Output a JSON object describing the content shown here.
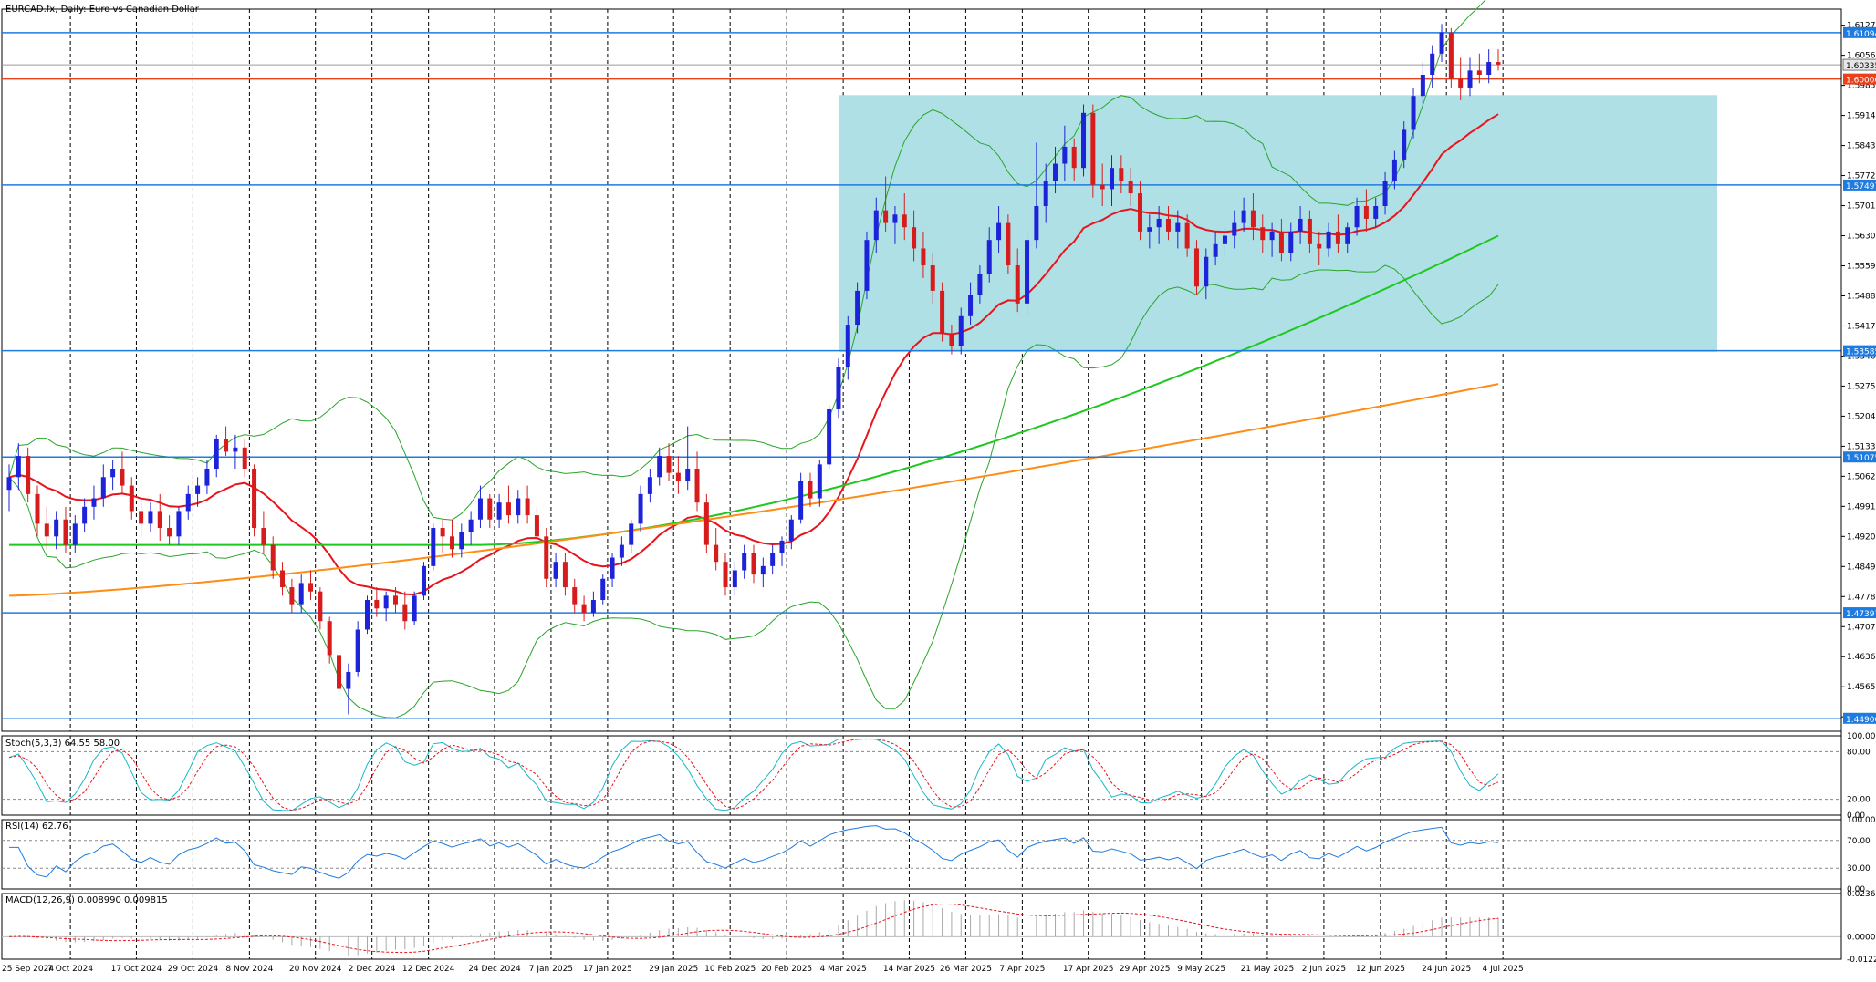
{
  "chart_data": {
    "type": "candlestick",
    "symbol_label": "EURCAD.fx, Daily:  Euro vs Canadian Dollar",
    "price_ticks": [
      "1.61270",
      "1.60560",
      "1.59850",
      "1.59140",
      "1.58430",
      "1.57720",
      "1.57010",
      "1.56300",
      "1.55590",
      "1.54880",
      "1.54170",
      "1.53460",
      "1.52750",
      "1.52040",
      "1.51330",
      "1.50620",
      "1.49910",
      "1.49200",
      "1.48490",
      "1.47780",
      "1.47070",
      "1.46360",
      "1.45650",
      "1.44940"
    ],
    "horizontal_levels": [
      {
        "value": 1.61094,
        "label": "1.61094",
        "color": "#1e7be0"
      },
      {
        "value": 1.57497,
        "label": "1.57497",
        "color": "#1e7be0"
      },
      {
        "value": 1.53585,
        "label": "1.53585",
        "color": "#1e7be0"
      },
      {
        "value": 1.51075,
        "label": "1.51075",
        "color": "#1e7be0"
      },
      {
        "value": 1.47397,
        "label": "1.47397",
        "color": "#1e7be0"
      },
      {
        "value": 1.44906,
        "label": "1.44906",
        "color": "#1e7be0"
      },
      {
        "value": 1.6,
        "label": "1.60000",
        "color": "#e8411c"
      }
    ],
    "current_price": {
      "value": 1.60335,
      "label": "1.60335"
    },
    "range_box": {
      "from_date": "4 Mar 2025",
      "to_date": "Jul 2025",
      "top": 1.5962,
      "bottom": 1.5356,
      "color": "#aee0e6"
    },
    "date_ticks": [
      "25 Sep 2024",
      "7 Oct 2024",
      "17 Oct 2024",
      "29 Oct 2024",
      "8 Nov 2024",
      "20 Nov 2024",
      "2 Dec 2024",
      "12 Dec 2024",
      "24 Dec 2024",
      "7 Jan 2025",
      "17 Jan 2025",
      "29 Jan 2025",
      "10 Feb 2025",
      "20 Feb 2025",
      "4 Mar 2025",
      "14 Mar 2025",
      "26 Mar 2025",
      "7 Apr 2025",
      "17 Apr 2025",
      "29 Apr 2025",
      "9 May 2025",
      "21 May 2025",
      "2 Jun 2025",
      "12 Jun 2025",
      "24 Jun 2025",
      "4 Jul 2025"
    ],
    "ohlc": [
      [
        1.503,
        1.509,
        1.498,
        1.506
      ],
      [
        1.506,
        1.514,
        1.503,
        1.511
      ],
      [
        1.511,
        1.513,
        1.5,
        1.502
      ],
      [
        1.502,
        1.504,
        1.492,
        1.495
      ],
      [
        1.495,
        1.499,
        1.489,
        1.492
      ],
      [
        1.492,
        1.498,
        1.489,
        1.496
      ],
      [
        1.496,
        1.499,
        1.488,
        1.49
      ],
      [
        1.49,
        1.497,
        1.488,
        1.495
      ],
      [
        1.495,
        1.501,
        1.493,
        1.499
      ],
      [
        1.499,
        1.504,
        1.496,
        1.501
      ],
      [
        1.501,
        1.509,
        1.499,
        1.506
      ],
      [
        1.506,
        1.51,
        1.503,
        1.508
      ],
      [
        1.508,
        1.512,
        1.502,
        1.504
      ],
      [
        1.504,
        1.506,
        1.496,
        1.498
      ],
      [
        1.498,
        1.501,
        1.492,
        1.495
      ],
      [
        1.495,
        1.5,
        1.493,
        1.498
      ],
      [
        1.498,
        1.502,
        1.491,
        1.494
      ],
      [
        1.494,
        1.497,
        1.49,
        1.492
      ],
      [
        1.492,
        1.499,
        1.49,
        1.498
      ],
      [
        1.498,
        1.504,
        1.496,
        1.502
      ],
      [
        1.502,
        1.506,
        1.499,
        1.504
      ],
      [
        1.504,
        1.51,
        1.502,
        1.508
      ],
      [
        1.508,
        1.516,
        1.506,
        1.515
      ],
      [
        1.515,
        1.518,
        1.511,
        1.512
      ],
      [
        1.512,
        1.516,
        1.508,
        1.513
      ],
      [
        1.513,
        1.515,
        1.506,
        1.508
      ],
      [
        1.508,
        1.509,
        1.492,
        1.494
      ],
      [
        1.494,
        1.498,
        1.488,
        1.49
      ],
      [
        1.49,
        1.492,
        1.482,
        1.484
      ],
      [
        1.484,
        1.486,
        1.478,
        1.48
      ],
      [
        1.48,
        1.482,
        1.474,
        1.476
      ],
      [
        1.476,
        1.483,
        1.474,
        1.481
      ],
      [
        1.481,
        1.484,
        1.477,
        1.479
      ],
      [
        1.479,
        1.48,
        1.47,
        1.472
      ],
      [
        1.472,
        1.473,
        1.462,
        1.464
      ],
      [
        1.464,
        1.466,
        1.454,
        1.456
      ],
      [
        1.456,
        1.462,
        1.45,
        1.46
      ],
      [
        1.46,
        1.472,
        1.459,
        1.47
      ],
      [
        1.47,
        1.478,
        1.469,
        1.477
      ],
      [
        1.477,
        1.48,
        1.473,
        1.475
      ],
      [
        1.475,
        1.479,
        1.472,
        1.478
      ],
      [
        1.478,
        1.48,
        1.474,
        1.476
      ],
      [
        1.476,
        1.479,
        1.47,
        1.472
      ],
      [
        1.472,
        1.479,
        1.471,
        1.478
      ],
      [
        1.478,
        1.486,
        1.477,
        1.485
      ],
      [
        1.485,
        1.495,
        1.484,
        1.494
      ],
      [
        1.494,
        1.496,
        1.488,
        1.492
      ],
      [
        1.492,
        1.496,
        1.487,
        1.489
      ],
      [
        1.489,
        1.495,
        1.487,
        1.493
      ],
      [
        1.493,
        1.498,
        1.49,
        1.496
      ],
      [
        1.496,
        1.504,
        1.494,
        1.501
      ],
      [
        1.501,
        1.502,
        1.494,
        1.496
      ],
      [
        1.496,
        1.502,
        1.494,
        1.5
      ],
      [
        1.5,
        1.504,
        1.495,
        1.497
      ],
      [
        1.497,
        1.503,
        1.495,
        1.501
      ],
      [
        1.501,
        1.504,
        1.495,
        1.497
      ],
      [
        1.497,
        1.499,
        1.49,
        1.492
      ],
      [
        1.492,
        1.494,
        1.48,
        1.482
      ],
      [
        1.482,
        1.488,
        1.48,
        1.486
      ],
      [
        1.486,
        1.488,
        1.478,
        1.48
      ],
      [
        1.48,
        1.482,
        1.474,
        1.476
      ],
      [
        1.476,
        1.478,
        1.472,
        1.474
      ],
      [
        1.474,
        1.479,
        1.473,
        1.477
      ],
      [
        1.477,
        1.483,
        1.476,
        1.482
      ],
      [
        1.482,
        1.488,
        1.48,
        1.487
      ],
      [
        1.487,
        1.492,
        1.485,
        1.49
      ],
      [
        1.49,
        1.496,
        1.488,
        1.495
      ],
      [
        1.495,
        1.504,
        1.493,
        1.502
      ],
      [
        1.502,
        1.508,
        1.5,
        1.506
      ],
      [
        1.506,
        1.513,
        1.504,
        1.511
      ],
      [
        1.511,
        1.514,
        1.505,
        1.507
      ],
      [
        1.507,
        1.511,
        1.502,
        1.505
      ],
      [
        1.505,
        1.518,
        1.503,
        1.508
      ],
      [
        1.508,
        1.512,
        1.498,
        1.5
      ],
      [
        1.5,
        1.502,
        1.488,
        1.49
      ],
      [
        1.49,
        1.494,
        1.484,
        1.486
      ],
      [
        1.486,
        1.488,
        1.478,
        1.48
      ],
      [
        1.48,
        1.486,
        1.478,
        1.484
      ],
      [
        1.484,
        1.49,
        1.482,
        1.488
      ],
      [
        1.488,
        1.49,
        1.481,
        1.483
      ],
      [
        1.483,
        1.487,
        1.48,
        1.485
      ],
      [
        1.485,
        1.49,
        1.483,
        1.488
      ],
      [
        1.488,
        1.492,
        1.485,
        1.491
      ],
      [
        1.491,
        1.497,
        1.489,
        1.496
      ],
      [
        1.496,
        1.507,
        1.495,
        1.505
      ],
      [
        1.505,
        1.507,
        1.499,
        1.501
      ],
      [
        1.501,
        1.51,
        1.499,
        1.509
      ],
      [
        1.509,
        1.523,
        1.508,
        1.522
      ],
      [
        1.522,
        1.534,
        1.52,
        1.532
      ],
      [
        1.532,
        1.544,
        1.529,
        1.542
      ],
      [
        1.542,
        1.552,
        1.54,
        1.55
      ],
      [
        1.55,
        1.564,
        1.548,
        1.562
      ],
      [
        1.562,
        1.572,
        1.559,
        1.569
      ],
      [
        1.569,
        1.577,
        1.564,
        1.566
      ],
      [
        1.566,
        1.57,
        1.561,
        1.568
      ],
      [
        1.568,
        1.573,
        1.562,
        1.565
      ],
      [
        1.565,
        1.569,
        1.557,
        1.56
      ],
      [
        1.56,
        1.564,
        1.553,
        1.556
      ],
      [
        1.556,
        1.559,
        1.547,
        1.55
      ],
      [
        1.55,
        1.552,
        1.538,
        1.54
      ],
      [
        1.54,
        1.542,
        1.535,
        1.537
      ],
      [
        1.537,
        1.546,
        1.535,
        1.544
      ],
      [
        1.544,
        1.552,
        1.542,
        1.549
      ],
      [
        1.549,
        1.556,
        1.547,
        1.554
      ],
      [
        1.554,
        1.565,
        1.552,
        1.562
      ],
      [
        1.562,
        1.57,
        1.559,
        1.566
      ],
      [
        1.566,
        1.568,
        1.554,
        1.556
      ],
      [
        1.556,
        1.56,
        1.545,
        1.547
      ],
      [
        1.547,
        1.564,
        1.544,
        1.562
      ],
      [
        1.562,
        1.585,
        1.56,
        1.57
      ],
      [
        1.57,
        1.58,
        1.566,
        1.576
      ],
      [
        1.576,
        1.584,
        1.573,
        1.58
      ],
      [
        1.58,
        1.589,
        1.576,
        1.584
      ],
      [
        1.584,
        1.586,
        1.576,
        1.579
      ],
      [
        1.579,
        1.594,
        1.577,
        1.592
      ],
      [
        1.592,
        1.594,
        1.572,
        1.575
      ],
      [
        1.575,
        1.58,
        1.57,
        1.574
      ],
      [
        1.574,
        1.582,
        1.57,
        1.579
      ],
      [
        1.579,
        1.582,
        1.573,
        1.576
      ],
      [
        1.576,
        1.579,
        1.57,
        1.573
      ],
      [
        1.573,
        1.576,
        1.562,
        1.564
      ],
      [
        1.564,
        1.568,
        1.56,
        1.565
      ],
      [
        1.565,
        1.57,
        1.561,
        1.567
      ],
      [
        1.567,
        1.57,
        1.562,
        1.564
      ],
      [
        1.564,
        1.569,
        1.56,
        1.566
      ],
      [
        1.566,
        1.568,
        1.558,
        1.56
      ],
      [
        1.56,
        1.562,
        1.549,
        1.551
      ],
      [
        1.551,
        1.56,
        1.548,
        1.558
      ],
      [
        1.558,
        1.564,
        1.556,
        1.561
      ],
      [
        1.561,
        1.565,
        1.558,
        1.563
      ],
      [
        1.563,
        1.569,
        1.56,
        1.566
      ],
      [
        1.566,
        1.572,
        1.564,
        1.569
      ],
      [
        1.569,
        1.573,
        1.562,
        1.565
      ],
      [
        1.565,
        1.568,
        1.559,
        1.562
      ],
      [
        1.562,
        1.566,
        1.558,
        1.564
      ],
      [
        1.564,
        1.567,
        1.557,
        1.559
      ],
      [
        1.559,
        1.566,
        1.557,
        1.564
      ],
      [
        1.564,
        1.57,
        1.561,
        1.567
      ],
      [
        1.567,
        1.569,
        1.559,
        1.561
      ],
      [
        1.561,
        1.564,
        1.556,
        1.56
      ],
      [
        1.56,
        1.566,
        1.558,
        1.564
      ],
      [
        1.564,
        1.568,
        1.559,
        1.561
      ],
      [
        1.561,
        1.566,
        1.559,
        1.565
      ],
      [
        1.565,
        1.572,
        1.563,
        1.57
      ],
      [
        1.57,
        1.574,
        1.564,
        1.567
      ],
      [
        1.567,
        1.572,
        1.565,
        1.57
      ],
      [
        1.57,
        1.578,
        1.568,
        1.576
      ],
      [
        1.576,
        1.583,
        1.574,
        1.581
      ],
      [
        1.581,
        1.59,
        1.579,
        1.588
      ],
      [
        1.588,
        1.598,
        1.586,
        1.596
      ],
      [
        1.596,
        1.604,
        1.594,
        1.601
      ],
      [
        1.601,
        1.608,
        1.598,
        1.606
      ],
      [
        1.606,
        1.613,
        1.604,
        1.611
      ],
      [
        1.611,
        1.612,
        1.598,
        1.6
      ],
      [
        1.6,
        1.605,
        1.595,
        1.598
      ],
      [
        1.598,
        1.605,
        1.596,
        1.602
      ],
      [
        1.602,
        1.606,
        1.599,
        1.601
      ],
      [
        1.601,
        1.607,
        1.599,
        1.604
      ],
      [
        1.604,
        1.607,
        1.602,
        1.6034
      ]
    ],
    "moving_average_colors": [
      "#e8141c",
      "#1ec81e",
      "#ff8c14"
    ],
    "bollinger_color": "#2aa52a",
    "candle_colors": {
      "up": "#1c23d8",
      "down": "#d61c1c"
    },
    "stochastic": {
      "label": "Stoch(5,3,3) 64.55 58.00",
      "main_color": "#17b8c8",
      "signal_color": "#e8141c",
      "levels": [
        "100.00",
        "80.00",
        "20.00",
        "0.00"
      ]
    },
    "rsi": {
      "label": "RSI(14) 62.76",
      "color": "#1e7be0",
      "levels": [
        "100.00",
        "70.00",
        "30.00",
        "0.00"
      ]
    },
    "macd": {
      "label": "MACD(12,26,9) 0.008990 0.009815",
      "signal_color": "#e8141c",
      "ticks": [
        "0.023621",
        "0.000000",
        "-0.012297"
      ]
    }
  }
}
